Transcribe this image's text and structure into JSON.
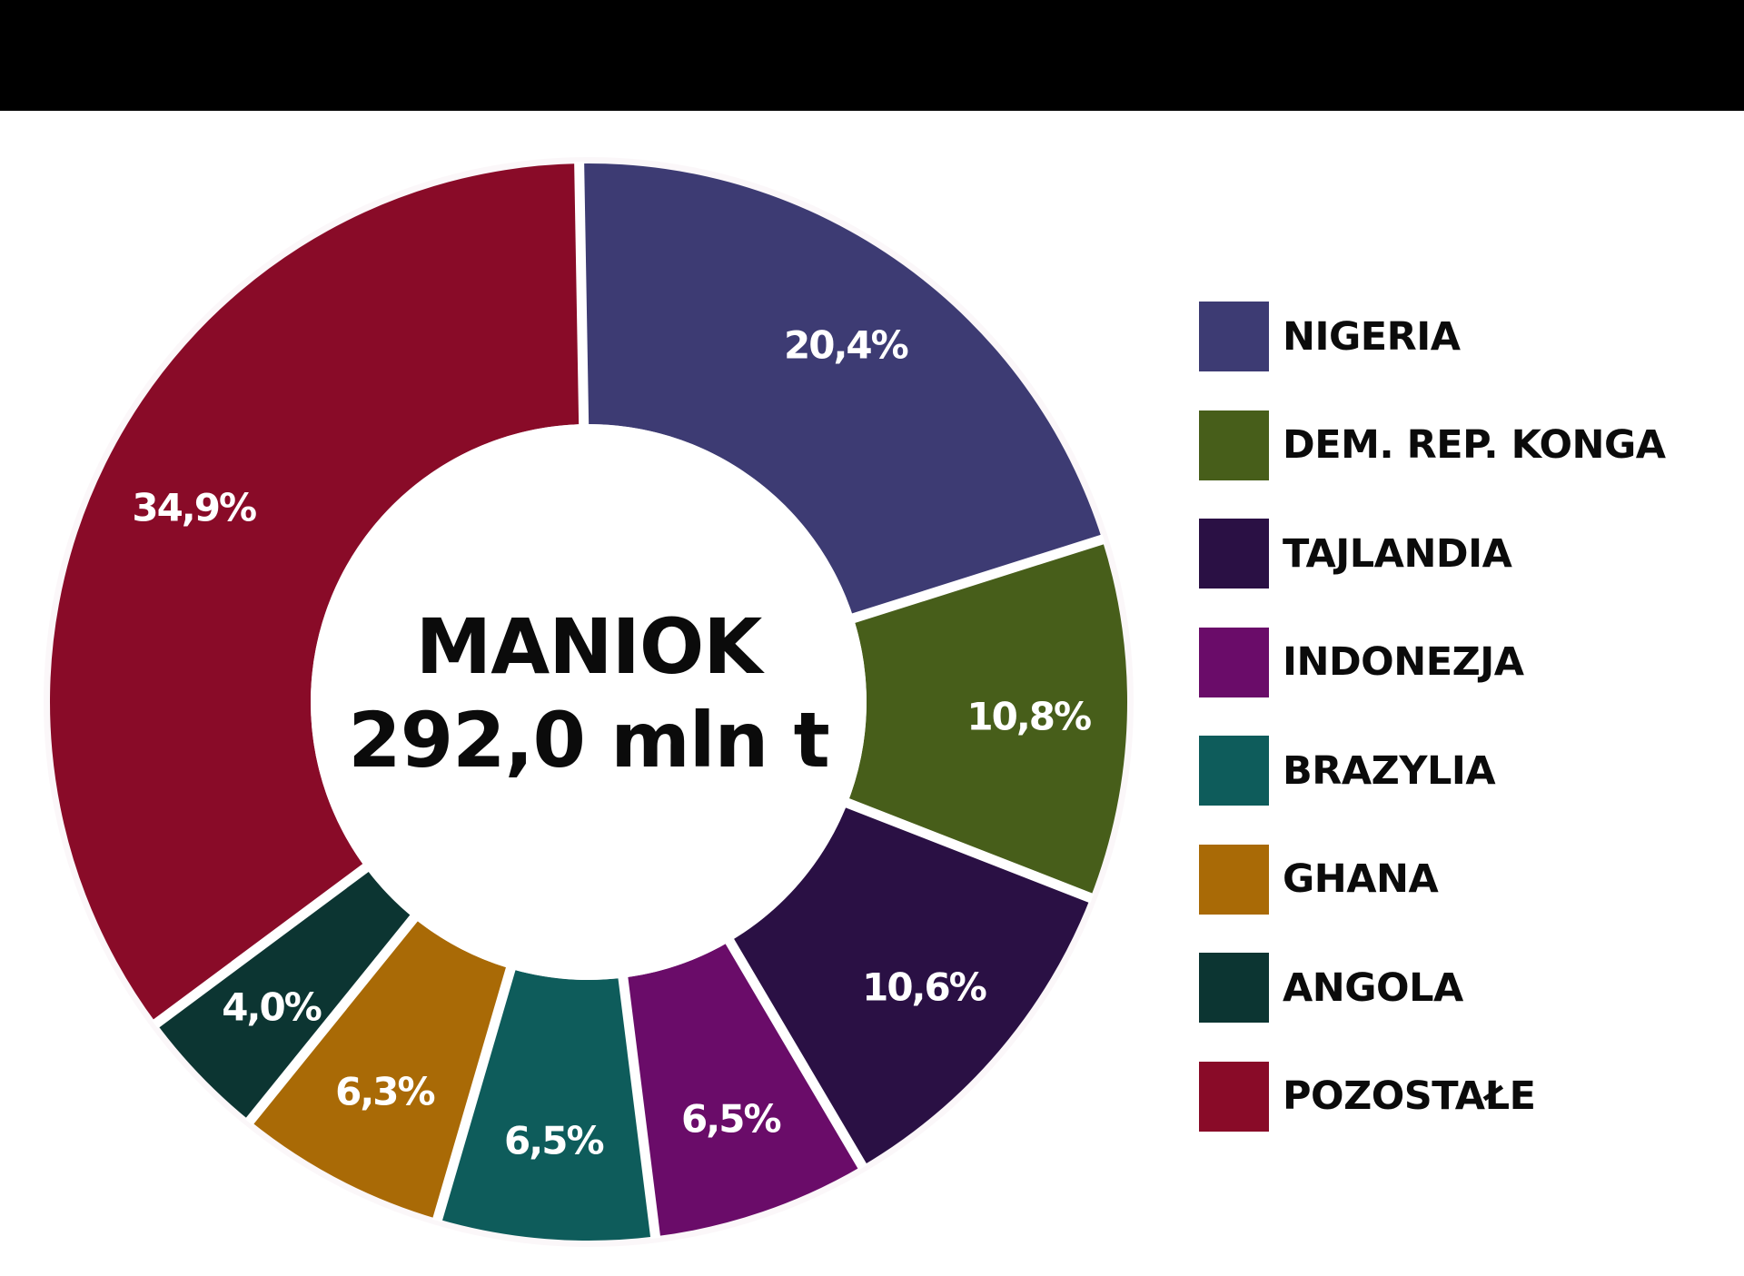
{
  "header": {
    "bar_color": "#000000"
  },
  "center": {
    "title": "MANIOK",
    "total": "292,0 mln t"
  },
  "chart_data": {
    "type": "pie",
    "subtype": "donut",
    "title": "MANIOK",
    "subtitle": "292,0 mln t",
    "categories": [
      "NIGERIA",
      "DEM. REP. KONGA",
      "TAJLANDIA",
      "INDONEZJA",
      "BRAZYLIA",
      "GHANA",
      "ANGOLA",
      "POZOSTAŁE"
    ],
    "values": [
      20.4,
      10.8,
      10.6,
      6.5,
      6.5,
      6.3,
      4.0,
      34.9
    ],
    "value_labels": [
      "20,4%",
      "10,8%",
      "10,6%",
      "6,5%",
      "6,5%",
      "6,3%",
      "4,0%",
      "34,9%"
    ],
    "colors": [
      "#3d3b73",
      "#475e1a",
      "#2a1044",
      "#6a0c69",
      "#0e5c5b",
      "#a96a06",
      "#0c3532",
      "#890b28"
    ],
    "unit": "%",
    "legend_position": "right",
    "start_angle_deg": -91,
    "direction": "clockwise"
  },
  "legend": {
    "items": [
      {
        "label": "NIGERIA",
        "color": "#3d3b73"
      },
      {
        "label": "DEM. REP. KONGA",
        "color": "#475e1a"
      },
      {
        "label": "TAJLANDIA",
        "color": "#2a1044"
      },
      {
        "label": "INDONEZJA",
        "color": "#6a0c69"
      },
      {
        "label": "BRAZYLIA",
        "color": "#0e5c5b"
      },
      {
        "label": "GHANA",
        "color": "#a96a06"
      },
      {
        "label": "ANGOLA",
        "color": "#0c3532"
      },
      {
        "label": "POZOSTAŁE",
        "color": "#890b28"
      }
    ]
  }
}
